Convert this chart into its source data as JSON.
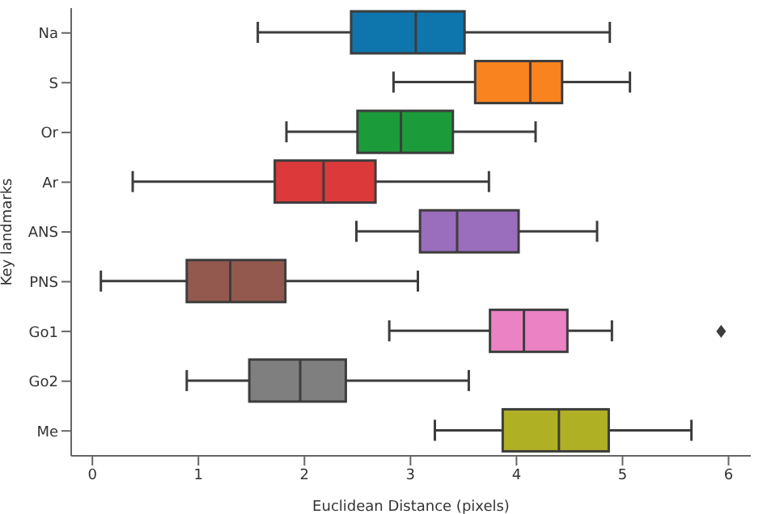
{
  "chart_data": {
    "type": "box",
    "orientation": "horizontal",
    "xlabel": "Euclidean Distance (pixels)",
    "ylabel": "Key landmarks",
    "categories": [
      "Na",
      "S",
      "Or",
      "Ar",
      "ANS",
      "PNS",
      "Go1",
      "Go2",
      "Me"
    ],
    "colors": [
      "#0f75ad",
      "#f8831f",
      "#1c9b3a",
      "#dc3a3a",
      "#9a6dbd",
      "#94594e",
      "#ea82c4",
      "#7f7f7f",
      "#b0b025"
    ],
    "boxes": [
      {
        "low": 1.56,
        "q1": 2.44,
        "median": 3.05,
        "q3": 3.51,
        "high": 4.88
      },
      {
        "low": 2.84,
        "q1": 3.61,
        "median": 4.13,
        "q3": 4.43,
        "high": 5.07
      },
      {
        "low": 1.83,
        "q1": 2.5,
        "median": 2.91,
        "q3": 3.4,
        "high": 4.18
      },
      {
        "low": 0.38,
        "q1": 1.72,
        "median": 2.18,
        "q3": 2.67,
        "high": 3.74
      },
      {
        "low": 2.49,
        "q1": 3.09,
        "median": 3.44,
        "q3": 4.02,
        "high": 4.76
      },
      {
        "low": 0.08,
        "q1": 0.89,
        "median": 1.3,
        "q3": 1.82,
        "high": 3.07
      },
      {
        "low": 2.8,
        "q1": 3.75,
        "median": 4.07,
        "q3": 4.48,
        "high": 4.9,
        "outliers": [
          5.93
        ]
      },
      {
        "low": 0.89,
        "q1": 1.48,
        "median": 1.96,
        "q3": 2.39,
        "high": 3.55
      },
      {
        "low": 3.23,
        "q1": 3.87,
        "median": 4.4,
        "q3": 4.87,
        "high": 5.65
      }
    ],
    "xlim": [
      -0.2,
      6.21
    ],
    "xticks": [
      0,
      1,
      2,
      3,
      4,
      5,
      6
    ],
    "grid": false,
    "legend": false
  }
}
